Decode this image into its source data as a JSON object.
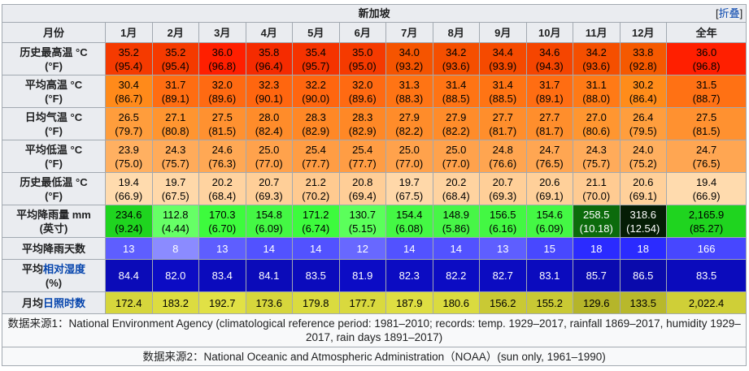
{
  "title": "新加坡",
  "toggle": {
    "open": "[",
    "label": "折叠",
    "close": "]"
  },
  "months_header": "月份",
  "months": [
    "1月",
    "2月",
    "3月",
    "4月",
    "5月",
    "6月",
    "7月",
    "8月",
    "9月",
    "10月",
    "11月",
    "12月",
    "全年"
  ],
  "rows": [
    {
      "label_lines": [
        "历史最高温 °C",
        "(°F)"
      ],
      "values": [
        "35.2",
        "35.2",
        "36.0",
        "35.8",
        "35.4",
        "35.0",
        "34.0",
        "34.2",
        "34.4",
        "34.6",
        "34.2",
        "33.8",
        "36.0"
      ],
      "values_alt": [
        "(95.4)",
        "(95.4)",
        "(96.8)",
        "(96.4)",
        "(95.7)",
        "(95.0)",
        "(93.2)",
        "(93.6)",
        "(93.9)",
        "(94.3)",
        "(93.6)",
        "(92.8)",
        "(96.8)"
      ],
      "colors": [
        "#f53a00",
        "#f53a00",
        "#ff1f00",
        "#f52b00",
        "#f53300",
        "#f53a00",
        "#f55400",
        "#f54f00",
        "#f54a00",
        "#f54500",
        "#f54f00",
        "#f55900",
        "#ff1f00"
      ],
      "text_color": "#000000"
    },
    {
      "label_lines": [
        "平均高温 °C",
        "(°F)"
      ],
      "values": [
        "30.4",
        "31.7",
        "32.0",
        "32.3",
        "32.2",
        "32.0",
        "31.3",
        "31.4",
        "31.4",
        "31.7",
        "31.1",
        "30.2",
        "31.5"
      ],
      "values_alt": [
        "(86.7)",
        "(89.1)",
        "(89.6)",
        "(90.1)",
        "(90.0)",
        "(89.6)",
        "(88.3)",
        "(88.5)",
        "(88.5)",
        "(89.1)",
        "(88.0)",
        "(86.4)",
        "(88.7)"
      ],
      "colors": [
        "#ff8a1a",
        "#ff6d12",
        "#ff6a12",
        "#ff660f",
        "#ff660f",
        "#ff6a12",
        "#ff7414",
        "#ff7414",
        "#ff7414",
        "#ff6d12",
        "#ff7a16",
        "#ff8c1a",
        "#ff7114"
      ],
      "text_color": "#000000"
    },
    {
      "label_lines": [
        "日均气温 °C",
        "(°F)"
      ],
      "values": [
        "26.5",
        "27.1",
        "27.5",
        "28.0",
        "28.3",
        "28.3",
        "27.9",
        "27.9",
        "27.7",
        "27.7",
        "27.0",
        "26.4",
        "27.5"
      ],
      "values_alt": [
        "(79.7)",
        "(80.8)",
        "(81.5)",
        "(82.4)",
        "(82.9)",
        "(82.9)",
        "(82.2)",
        "(82.2)",
        "(81.7)",
        "(81.7)",
        "(80.6)",
        "(79.5)",
        "(81.5)"
      ],
      "colors": [
        "#ff9d3c",
        "#ff9530",
        "#ff9130",
        "#ff8c2a",
        "#ff8826",
        "#ff8826",
        "#ff8c2a",
        "#ff8c2a",
        "#ff8e2c",
        "#ff8e2c",
        "#ff9630",
        "#ff9e3d",
        "#ff9130"
      ],
      "text_color": "#000000"
    },
    {
      "label_lines": [
        "平均低温 °C",
        "(°F)"
      ],
      "values": [
        "23.9",
        "24.3",
        "24.6",
        "25.0",
        "25.4",
        "25.4",
        "25.0",
        "25.0",
        "24.8",
        "24.7",
        "24.3",
        "24.0",
        "24.7"
      ],
      "values_alt": [
        "(75.0)",
        "(75.7)",
        "(76.3)",
        "(77.0)",
        "(77.7)",
        "(77.7)",
        "(77.0)",
        "(77.0)",
        "(76.6)",
        "(76.5)",
        "(75.7)",
        "(75.2)",
        "(76.5)"
      ],
      "colors": [
        "#ffb061",
        "#ffab5a",
        "#ffa854",
        "#ffa24c",
        "#ff9d44",
        "#ff9d44",
        "#ffa24c",
        "#ffa24c",
        "#ffa550",
        "#ffa652",
        "#ffab5a",
        "#ffaf5f",
        "#ffa652"
      ],
      "text_color": "#000000"
    },
    {
      "label_lines": [
        "历史最低温 °C",
        "(°F)"
      ],
      "values": [
        "19.4",
        "19.7",
        "20.2",
        "20.7",
        "21.2",
        "20.8",
        "19.7",
        "20.2",
        "20.7",
        "20.6",
        "21.1",
        "20.6",
        "19.4"
      ],
      "values_alt": [
        "(66.9)",
        "(67.5)",
        "(68.4)",
        "(69.3)",
        "(70.2)",
        "(69.4)",
        "(67.5)",
        "(68.4)",
        "(69.3)",
        "(69.1)",
        "(70.0)",
        "(69.1)",
        "(66.9)"
      ],
      "colors": [
        "#ffdbae",
        "#ffd8a9",
        "#ffd3a0",
        "#ffcf98",
        "#ffca90",
        "#ffce97",
        "#ffd8a9",
        "#ffd3a0",
        "#ffcf98",
        "#ffd09a",
        "#ffcb92",
        "#ffd09a",
        "#ffdbae"
      ],
      "text_color": "#000000"
    },
    {
      "label_lines": [
        "平均降雨量 mm",
        "(英寸)"
      ],
      "values": [
        "234.6",
        "112.8",
        "170.3",
        "154.8",
        "171.2",
        "130.7",
        "154.4",
        "148.9",
        "156.5",
        "154.6",
        "258.5",
        "318.6",
        "2,165.9"
      ],
      "values_alt": [
        "(9.24)",
        "(4.44)",
        "(6.70)",
        "(6.09)",
        "(6.74)",
        "(5.15)",
        "(6.08)",
        "(5.86)",
        "(6.16)",
        "(6.09)",
        "(10.18)",
        "(12.54)",
        "(85.27)"
      ],
      "colors": [
        "#1fd41f",
        "#66ff66",
        "#3dfb3d",
        "#44f844",
        "#3dfb3d",
        "#5bff5b",
        "#44f844",
        "#47f647",
        "#43f843",
        "#44f844",
        "#0c6b0c",
        "#051d05",
        "#1fd41f"
      ],
      "text_colors": [
        "#000000",
        "#000000",
        "#000000",
        "#000000",
        "#000000",
        "#000000",
        "#000000",
        "#000000",
        "#000000",
        "#000000",
        "#ffffff",
        "#ffffff",
        "#000000"
      ]
    },
    {
      "label_lines": [
        "平均降雨天数"
      ],
      "values": [
        "13",
        "8",
        "13",
        "14",
        "14",
        "12",
        "14",
        "14",
        "13",
        "15",
        "18",
        "18",
        "166"
      ],
      "colors": [
        "#5e5eff",
        "#8b8bff",
        "#5e5eff",
        "#5252ff",
        "#5252ff",
        "#6868ff",
        "#5252ff",
        "#5252ff",
        "#5e5eff",
        "#4848ff",
        "#2b2bff",
        "#2b2bff",
        "#4747ff"
      ],
      "text_color": "#ffffff"
    },
    {
      "label_lines_rich": [
        {
          "pre": "平均",
          "link": "相对湿度",
          "post": ""
        }
      ],
      "label_line2": "(%)",
      "values": [
        "84.4",
        "82.0",
        "83.4",
        "84.1",
        "83.5",
        "81.9",
        "82.3",
        "82.2",
        "82.7",
        "83.1",
        "85.7",
        "86.5",
        "83.5"
      ],
      "colors": [
        "#0b0bb8",
        "#0c0cc4",
        "#0b0bbd",
        "#0b0bb9",
        "#0b0bbc",
        "#0c0cc5",
        "#0c0cc2",
        "#0c0cc3",
        "#0c0cc1",
        "#0b0bbe",
        "#0a0ab0",
        "#0a0aac",
        "#0b0bbc"
      ],
      "text_color": "#ffffff"
    },
    {
      "label_lines_rich": [
        {
          "pre": "月均",
          "link": "日照时数",
          "post": ""
        }
      ],
      "values": [
        "172.4",
        "183.2",
        "192.7",
        "173.6",
        "179.8",
        "177.7",
        "187.9",
        "180.6",
        "156.2",
        "155.2",
        "129.6",
        "133.5",
        "2,022.4"
      ],
      "colors": [
        "#d6d63c",
        "#dcdc40",
        "#e1e145",
        "#d6d63c",
        "#dadb3f",
        "#d9d93e",
        "#dede42",
        "#dadb3f",
        "#c9c934",
        "#c9c934",
        "#b5b52a",
        "#b8b82b",
        "#cfcf37"
      ],
      "text_color": "#000000"
    }
  ],
  "sources": [
    "数据来源1：National Environment Agency (climatological reference period: 1981–2010; records: temp. 1929–2017, rainfall 1869–2017, humidity 1929–2017, rain days 1891–2017)",
    "数据来源2：National Oceanic and Atmospheric Administration（NOAA）(sun only, 1961–1990)"
  ]
}
